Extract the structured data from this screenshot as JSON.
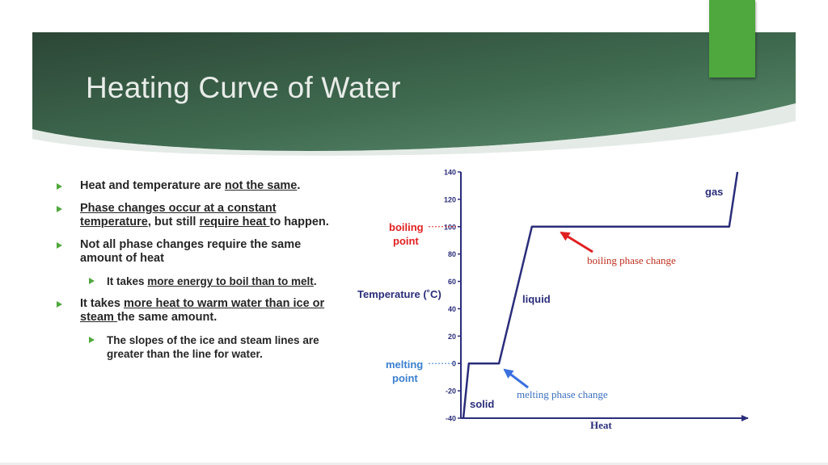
{
  "slide": {
    "title": "Heating Curve of Water",
    "colors": {
      "banner_dark": "#2e4a3a",
      "banner_light": "#5a8c6c",
      "accent": "#4fa83d",
      "bullet": "#4fa83d",
      "text": "#262626"
    }
  },
  "bullets": [
    {
      "level": 1,
      "parts": [
        {
          "text": "Heat and temperature are ",
          "u": false
        },
        {
          "text": "not the same",
          "u": true
        },
        {
          "text": ".",
          "u": false
        }
      ]
    },
    {
      "level": 1,
      "parts": [
        {
          "text": "Phase changes occur at a constant temperature",
          "u": true
        },
        {
          "text": ", but still ",
          "u": false
        },
        {
          "text": "require heat ",
          "u": true
        },
        {
          "text": "to happen.",
          "u": false
        }
      ]
    },
    {
      "level": 1,
      "parts": [
        {
          "text": "Not all phase changes require the same amount of heat",
          "u": false
        }
      ]
    },
    {
      "level": 2,
      "parts": [
        {
          "text": "It takes ",
          "u": false
        },
        {
          "text": "more energy to boil than to melt",
          "u": true
        },
        {
          "text": ".",
          "u": false
        }
      ]
    },
    {
      "level": 1,
      "parts": [
        {
          "text": "It takes ",
          "u": false
        },
        {
          "text": "more heat to warm water than ice or steam ",
          "u": true
        },
        {
          "text": "the same amount.",
          "u": false
        }
      ]
    },
    {
      "level": 2,
      "parts": [
        {
          "text": "The slopes of the ice and steam lines are greater than the line for water.",
          "u": false
        }
      ]
    }
  ],
  "chart_data": {
    "type": "line",
    "title": "",
    "xlabel": "Heat",
    "ylabel": "Temperature (˚C)",
    "ylim": [
      -40,
      140
    ],
    "y_ticks": [
      "140",
      "120",
      "100",
      "80",
      "60",
      "40",
      "20",
      "0",
      "-20",
      "-40"
    ],
    "grid": false,
    "series": [
      {
        "values_heat_relative": [
          0,
          0.02,
          0.13,
          0.25,
          0.97,
          1.0
        ],
        "temperature": [
          -40,
          0,
          0,
          100,
          100,
          140
        ]
      }
    ],
    "phase_labels": {
      "solid": "solid",
      "liquid": "liquid",
      "gas": "gas"
    },
    "reference_lines": [
      {
        "label_line1": "boiling",
        "label_line2": "point",
        "y": 100,
        "color": "#e02020"
      },
      {
        "label_line1": "melting",
        "label_line2": "point",
        "y": 0,
        "color": "#3a7fd0"
      }
    ],
    "annotations": [
      {
        "text": "boiling phase change",
        "color": "#c03020",
        "arrow_color": "#e02020"
      },
      {
        "text": "melting phase change",
        "color": "#3a6fc0",
        "arrow_color": "#3a6fe0"
      }
    ],
    "line_color": "#2a2d7a"
  }
}
